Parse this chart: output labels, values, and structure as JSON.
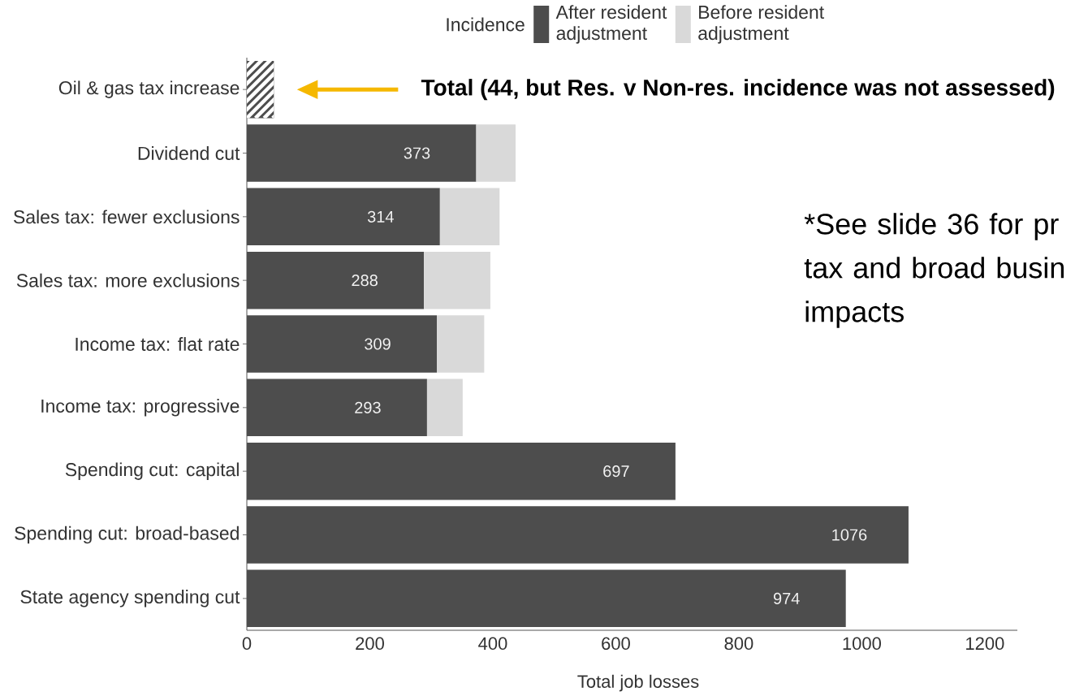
{
  "chart_data": {
    "type": "bar",
    "orientation": "horizontal",
    "stacked": true,
    "categories": [
      "Oil & gas tax increase",
      "Dividend cut",
      "Sales tax: fewer exclusions",
      "Sales tax: more exclusions",
      "Income tax: flat rate",
      "Income tax: progressive",
      "Spending cut: capital",
      "Spending cut: broad-based",
      "State agency spending cut"
    ],
    "series": [
      {
        "name": "After resident adjustment",
        "color": "#4d4d4d",
        "values": [
          null,
          373,
          314,
          288,
          309,
          293,
          697,
          1076,
          974
        ],
        "value_labels": [
          null,
          "373",
          "314",
          "288",
          "309",
          "293",
          "697",
          "1076",
          "974"
        ]
      },
      {
        "name": "Before resident adjustment",
        "color": "#d9d9d9",
        "values": [
          null,
          64,
          97,
          108,
          77,
          58,
          null,
          null,
          null
        ]
      },
      {
        "color": "#4d4d4d",
        "values": [
          44,
          null,
          null,
          null,
          null,
          null,
          null,
          null,
          null
        ]
      }
    ],
    "legend_title": "Incidence",
    "legend": "top",
    "xlabel": "Total job losses",
    "xlim": [
      0,
      1253
    ],
    "xticks": [
      0,
      200,
      400,
      600,
      800,
      1000,
      1200
    ],
    "annotations": [
      "Total (44, but Res. v Non-res. incidence was not assessed)",
      "*See slide 36 for pr tax and broad busin impacts"
    ]
  }
}
